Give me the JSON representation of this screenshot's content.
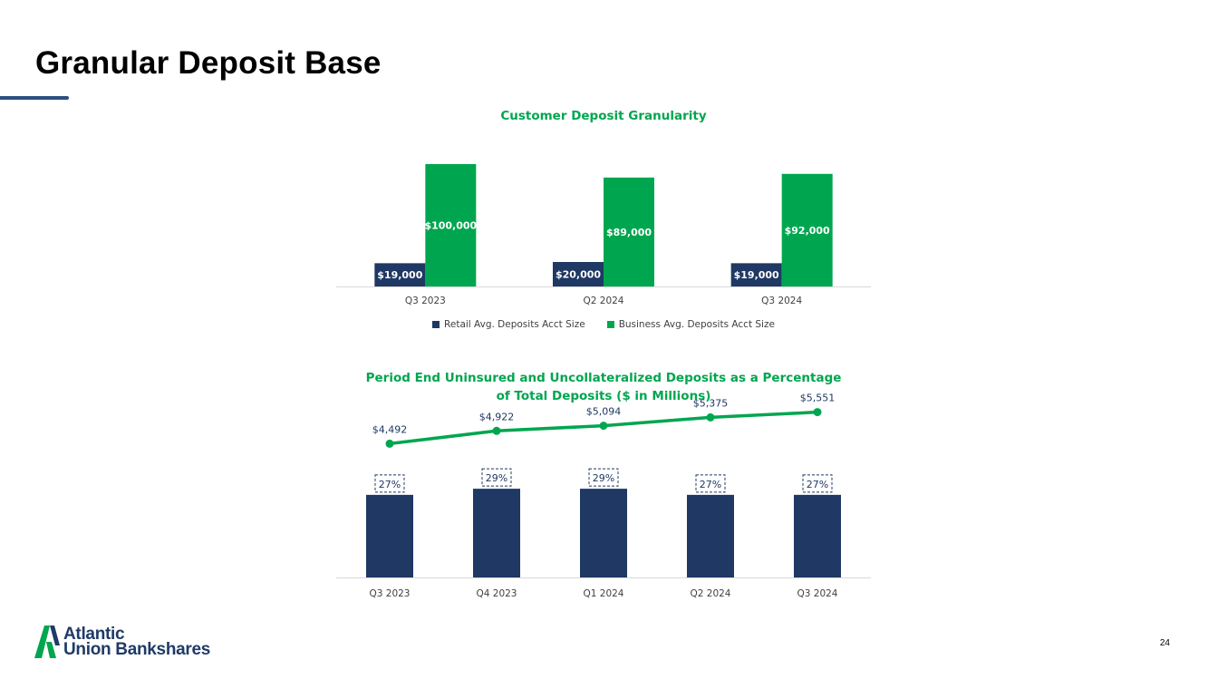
{
  "slide": {
    "title": "Granular Deposit Base",
    "page_number": "24",
    "logo": {
      "line1": "Atlantic",
      "line2": "Union Bankshares",
      "icon": "atlantic-union-a-mark-icon"
    }
  },
  "colors": {
    "navy": "#1f3864",
    "green": "#00a64f",
    "title_green": "#00a64f",
    "axis": "#d9d9d9",
    "tick_text": "#404040",
    "line_label": "#1f3864"
  },
  "chart_data": [
    {
      "id": "chart1",
      "type": "bar",
      "title": "Customer Deposit Granularity",
      "categories": [
        "Q3 2023",
        "Q2 2024",
        "Q3 2024"
      ],
      "series": [
        {
          "name": "Retail Avg. Deposits Acct Size",
          "values": [
            19000,
            20000,
            19000
          ],
          "labels": [
            "$19,000",
            "$20,000",
            "$19,000"
          ],
          "color": "#1f3864"
        },
        {
          "name": "Business Avg. Deposits Acct Size",
          "values": [
            100000,
            89000,
            92000
          ],
          "labels": [
            "$100,000",
            "$89,000",
            "$92,000"
          ],
          "color": "#00a64f"
        }
      ],
      "ylim": [
        0,
        100000
      ],
      "legend": "bottom",
      "grid": false
    },
    {
      "id": "chart2",
      "type": "bar+line",
      "title_lines": [
        "Period End Uninsured and Uncollateralized Deposits as a Percentage",
        "of Total Deposits ($ in Millions)"
      ],
      "categories": [
        "Q3 2023",
        "Q4 2023",
        "Q1 2024",
        "Q2 2024",
        "Q3 2024"
      ],
      "bar_series": {
        "name": "% of Total Deposits",
        "values": [
          27,
          29,
          29,
          27,
          27
        ],
        "labels": [
          "27%",
          "29%",
          "29%",
          "27%",
          "27%"
        ],
        "color": "#1f3864"
      },
      "line_series": {
        "name": "Uninsured and Uncollateralized Deposits ($M)",
        "values": [
          4492,
          4922,
          5094,
          5375,
          5551
        ],
        "labels": [
          "$4,492",
          "$4,922",
          "$5,094",
          "$5,375",
          "$5,551"
        ],
        "color": "#00a64f"
      },
      "bar_ylim": [
        0,
        40
      ],
      "line_ylim": [
        0,
        6300
      ],
      "grid": false
    }
  ]
}
